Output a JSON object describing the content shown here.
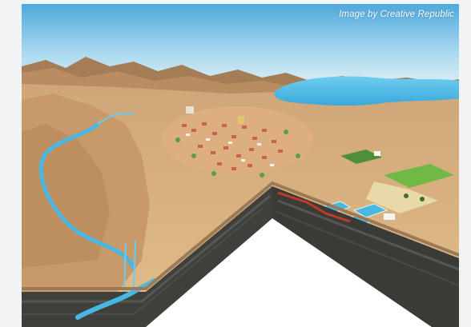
{
  "image": {
    "credit": "Image by Creative Republic",
    "subject": "isometric cross-section of a desert valley town with river, lake, farm fields, water treatment ponds and underground aquifer",
    "icons": [
      "town-icon",
      "lake-icon",
      "river-icon",
      "aquifer-icon",
      "farm-field-icon",
      "treatment-pond-icon"
    ]
  },
  "colors": {
    "sky_top": "#4fa9dc",
    "sky_bottom": "#dff1f8",
    "terrain": "#d8b280",
    "mountains": "#a67e57",
    "water": "#48b8e3",
    "field_green": "#6fb944",
    "ground_strata": "#3f3f3c",
    "pipe_red": "#c0392b"
  }
}
